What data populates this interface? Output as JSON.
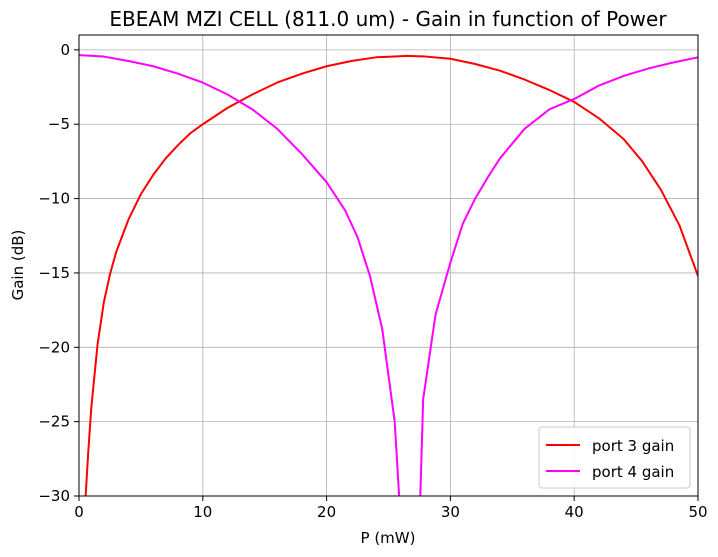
{
  "chart_data": {
    "type": "line",
    "title": "EBEAM MZI CELL (811.0 um)  -  Gain in function of Power",
    "xlabel": "P (mW)",
    "ylabel": "Gain (dB)",
    "xlim": [
      0,
      50
    ],
    "ylim": [
      -30,
      1
    ],
    "xticks": [
      0,
      10,
      20,
      30,
      40,
      50
    ],
    "yticks": [
      0,
      -5,
      -10,
      -15,
      -20,
      -25,
      -30
    ],
    "xtick_labels": [
      "0",
      "10",
      "20",
      "30",
      "40",
      "50"
    ],
    "ytick_labels": [
      "0",
      "−5",
      "−10",
      "−15",
      "−20",
      "−25",
      "−30"
    ],
    "grid": true,
    "legend_position": "lower-right",
    "series": [
      {
        "name": "port 3 gain",
        "color": "#ff0000",
        "points": [
          [
            0.5,
            -30.5
          ],
          [
            0.75,
            -27
          ],
          [
            1.0,
            -24
          ],
          [
            1.5,
            -19.8
          ],
          [
            2.0,
            -17
          ],
          [
            2.5,
            -15.1
          ],
          [
            3.0,
            -13.6
          ],
          [
            4.0,
            -11.4
          ],
          [
            5.0,
            -9.7
          ],
          [
            6.0,
            -8.4
          ],
          [
            7.0,
            -7.3
          ],
          [
            8.0,
            -6.4
          ],
          [
            9.0,
            -5.6
          ],
          [
            10.0,
            -5.0
          ],
          [
            12.0,
            -3.9
          ],
          [
            14.0,
            -3.0
          ],
          [
            16.0,
            -2.2
          ],
          [
            18.0,
            -1.6
          ],
          [
            20.0,
            -1.1
          ],
          [
            22.0,
            -0.75
          ],
          [
            24.0,
            -0.5
          ],
          [
            26.5,
            -0.4
          ],
          [
            28.0,
            -0.45
          ],
          [
            30.0,
            -0.6
          ],
          [
            32.0,
            -0.95
          ],
          [
            34.0,
            -1.4
          ],
          [
            36.0,
            -2.0
          ],
          [
            38.0,
            -2.7
          ],
          [
            40.0,
            -3.5
          ],
          [
            42.0,
            -4.6
          ],
          [
            44.0,
            -6.0
          ],
          [
            45.5,
            -7.5
          ],
          [
            47.0,
            -9.4
          ],
          [
            48.5,
            -11.8
          ],
          [
            50.0,
            -15.2
          ]
        ]
      },
      {
        "name": "port 4 gain",
        "color": "#ff00ff",
        "points": [
          [
            0.0,
            -0.35
          ],
          [
            2.0,
            -0.45
          ],
          [
            4.0,
            -0.75
          ],
          [
            6.0,
            -1.1
          ],
          [
            8.0,
            -1.6
          ],
          [
            10.0,
            -2.2
          ],
          [
            12.0,
            -3.0
          ],
          [
            14.0,
            -4.0
          ],
          [
            16.0,
            -5.3
          ],
          [
            18.0,
            -7.0
          ],
          [
            20.0,
            -8.9
          ],
          [
            21.5,
            -10.8
          ],
          [
            22.5,
            -12.6
          ],
          [
            23.5,
            -15.2
          ],
          [
            24.5,
            -18.8
          ],
          [
            25.5,
            -25.0
          ],
          [
            26.0,
            -32.0
          ],
          [
            27.5,
            -32.0
          ],
          [
            27.8,
            -23.5
          ],
          [
            28.8,
            -17.8
          ],
          [
            30.0,
            -14.3
          ],
          [
            31.0,
            -11.7
          ],
          [
            32.0,
            -10.0
          ],
          [
            33.0,
            -8.6
          ],
          [
            34.0,
            -7.3
          ],
          [
            35.0,
            -6.3
          ],
          [
            36.0,
            -5.3
          ],
          [
            38.0,
            -4.0
          ],
          [
            40.0,
            -3.3
          ],
          [
            42.0,
            -2.4
          ],
          [
            44.0,
            -1.75
          ],
          [
            46.0,
            -1.25
          ],
          [
            48.0,
            -0.85
          ],
          [
            50.0,
            -0.5
          ]
        ]
      }
    ]
  }
}
